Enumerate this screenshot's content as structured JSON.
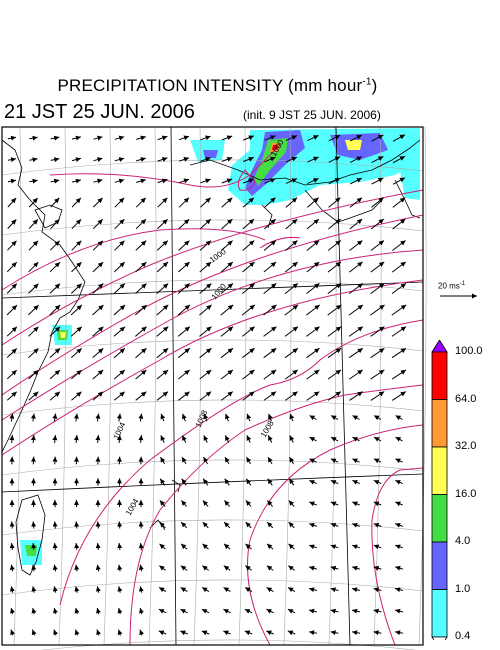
{
  "title": {
    "main": "PRECIPITATION INTENSITY (mm hour",
    "exp": "-1",
    "close": ")"
  },
  "valid_time": "21 JST 25 JUN. 2006",
  "init_time": "(init. 9 JST 25 JUN. 2006)",
  "wind_reference": {
    "label": "20 ms",
    "exp": "-1"
  },
  "isobar_labels": [
    "1000",
    "1000",
    "1000",
    "1004",
    "1008",
    "1008",
    "1004"
  ],
  "colorbar": {
    "ticks": [
      "100.0",
      "64.0",
      "32.0",
      "16.0",
      "4.0",
      "1.0",
      "0.4"
    ],
    "colors": [
      "#9900ff",
      "#ff0000",
      "#ff9933",
      "#ffff55",
      "#44dd44",
      "#6666ff",
      "#55ffff"
    ]
  },
  "colors": {
    "isobar": "#cc2277",
    "coast": "#000000",
    "grid": "#999999"
  }
}
